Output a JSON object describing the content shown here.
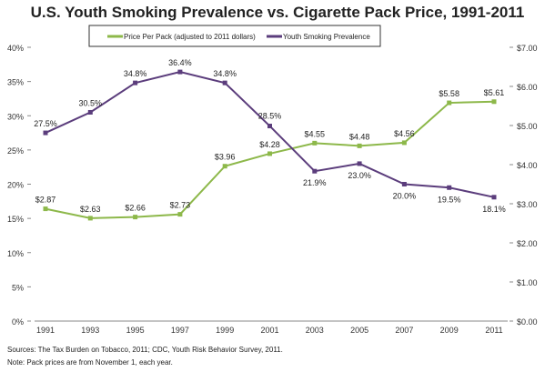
{
  "chart_data": {
    "type": "line",
    "title": "U.S. Youth Smoking Prevalence vs. Cigarette Pack Price, 1991-2011",
    "categories": [
      "1991",
      "1993",
      "1995",
      "1997",
      "1999",
      "2001",
      "2003",
      "2005",
      "2007",
      "2009",
      "2011"
    ],
    "series": [
      {
        "name": "Price Per Pack (adjusted to 2011 dollars)",
        "axis": "right",
        "color": "#8DB84A",
        "values": [
          2.87,
          2.63,
          2.66,
          2.73,
          3.96,
          4.28,
          4.55,
          4.48,
          4.56,
          5.58,
          5.61
        ],
        "labels": [
          "$2.87",
          "$2.63",
          "$2.66",
          "$2.73",
          "$3.96",
          "$4.28",
          "$4.55",
          "$4.48",
          "$4.56",
          "$5.58",
          "$5.61"
        ]
      },
      {
        "name": "Youth Smoking Prevalence",
        "axis": "left",
        "color": "#5B3D7C",
        "values": [
          27.5,
          30.5,
          34.8,
          36.4,
          34.8,
          28.5,
          21.9,
          23.0,
          20.0,
          19.5,
          18.1
        ],
        "labels": [
          "27.5%",
          "30.5%",
          "34.8%",
          "36.4%",
          "34.8%",
          "28.5%",
          "21.9%",
          "23.0%",
          "20.0%",
          "19.5%",
          "18.1%"
        ]
      }
    ],
    "left_axis": {
      "ylim": [
        0,
        40
      ],
      "ticks": [
        "0%",
        "5%",
        "10%",
        "15%",
        "20%",
        "25%",
        "30%",
        "35%",
        "40%"
      ]
    },
    "right_axis": {
      "ylim": [
        0,
        7
      ],
      "ticks": [
        "$0.00",
        "$1.00",
        "$2.00",
        "$3.00",
        "$4.00",
        "$5.00",
        "$6.00",
        "$7.00"
      ]
    },
    "grid": false,
    "legend": "top-center"
  },
  "footnotes": {
    "sources": "Sources:  The Tax Burden on Tobacco, 2011; CDC, Youth Risk Behavior Survey, 2011.",
    "note": "Note:  Pack prices are from November 1, each year."
  }
}
